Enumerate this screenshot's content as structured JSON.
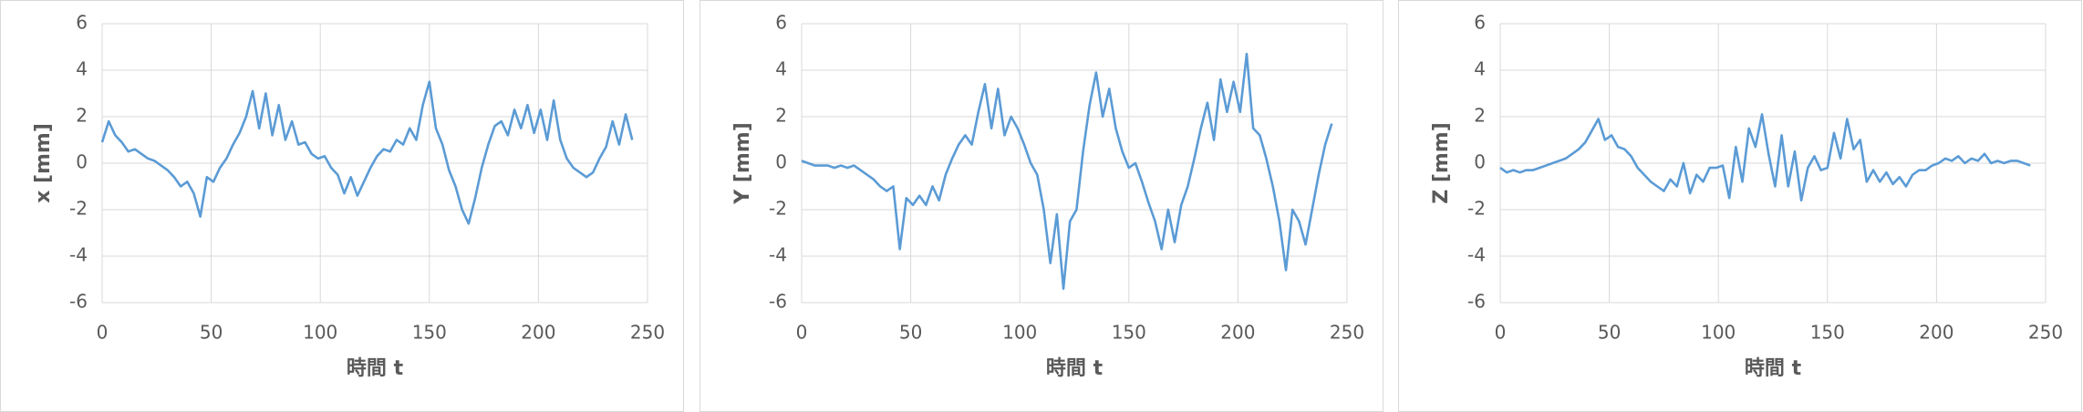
{
  "chart_data": [
    {
      "type": "line",
      "ylabel": "x [mm]",
      "xlabel": "時間 t",
      "xlim": [
        0,
        250
      ],
      "xticks": [
        0,
        50,
        100,
        150,
        200,
        250
      ],
      "ylim": [
        -6,
        6
      ],
      "yticks": [
        -6,
        -4,
        -2,
        0,
        2,
        4,
        6
      ],
      "grid": true,
      "x": [
        0,
        3,
        6,
        9,
        12,
        15,
        18,
        21,
        24,
        27,
        30,
        33,
        36,
        39,
        42,
        45,
        48,
        51,
        54,
        57,
        60,
        63,
        66,
        69,
        72,
        75,
        78,
        81,
        84,
        87,
        90,
        93,
        96,
        99,
        102,
        105,
        108,
        111,
        114,
        117,
        120,
        123,
        126,
        129,
        132,
        135,
        138,
        141,
        144,
        147,
        150,
        153,
        156,
        159,
        162,
        165,
        168,
        171,
        174,
        177,
        180,
        183,
        186,
        189,
        192,
        195,
        198,
        201,
        204,
        207,
        210,
        213,
        216,
        219,
        222,
        225,
        228,
        231,
        234,
        237,
        240,
        243
      ],
      "series": [
        {
          "color": "#5b9bd5",
          "values": [
            0.9,
            1.8,
            1.2,
            0.9,
            0.5,
            0.6,
            0.4,
            0.2,
            0.1,
            -0.1,
            -0.3,
            -0.6,
            -1.0,
            -0.8,
            -1.3,
            -2.3,
            -0.6,
            -0.8,
            -0.2,
            0.2,
            0.8,
            1.3,
            2.0,
            3.1,
            1.5,
            3.0,
            1.2,
            2.5,
            1.0,
            1.8,
            0.8,
            0.9,
            0.4,
            0.2,
            0.3,
            -0.2,
            -0.5,
            -1.3,
            -0.6,
            -1.4,
            -0.8,
            -0.2,
            0.3,
            0.6,
            0.5,
            1.0,
            0.8,
            1.5,
            1.0,
            2.5,
            3.5,
            1.5,
            0.8,
            -0.3,
            -1.0,
            -2.0,
            -2.6,
            -1.5,
            -0.2,
            0.8,
            1.6,
            1.8,
            1.2,
            2.3,
            1.5,
            2.5,
            1.3,
            2.3,
            1.0,
            2.7,
            1.0,
            0.2,
            -0.2,
            -0.4,
            -0.6,
            -0.4,
            0.2,
            0.7,
            1.8,
            0.8,
            2.1,
            1.0
          ]
        }
      ]
    },
    {
      "type": "line",
      "ylabel": "Y [mm]",
      "xlabel": "時間 t",
      "xlim": [
        0,
        250
      ],
      "xticks": [
        0,
        50,
        100,
        150,
        200,
        250
      ],
      "ylim": [
        -6,
        6
      ],
      "yticks": [
        -6,
        -4,
        -2,
        0,
        2,
        4,
        6
      ],
      "grid": true,
      "x": [
        0,
        3,
        6,
        9,
        12,
        15,
        18,
        21,
        24,
        27,
        30,
        33,
        36,
        39,
        42,
        45,
        48,
        51,
        54,
        57,
        60,
        63,
        66,
        69,
        72,
        75,
        78,
        81,
        84,
        87,
        90,
        93,
        96,
        99,
        102,
        105,
        108,
        111,
        114,
        117,
        120,
        123,
        126,
        129,
        132,
        135,
        138,
        141,
        144,
        147,
        150,
        153,
        156,
        159,
        162,
        165,
        168,
        171,
        174,
        177,
        180,
        183,
        186,
        189,
        192,
        195,
        198,
        201,
        204,
        207,
        210,
        213,
        216,
        219,
        222,
        225,
        228,
        231,
        234,
        237,
        240,
        243
      ],
      "series": [
        {
          "color": "#5b9bd5",
          "values": [
            0.1,
            0,
            -0.1,
            -0.1,
            -0.1,
            -0.2,
            -0.1,
            -0.2,
            -0.1,
            -0.3,
            -0.5,
            -0.7,
            -1.0,
            -1.2,
            -1.0,
            -3.7,
            -1.5,
            -1.8,
            -1.4,
            -1.8,
            -1.0,
            -1.6,
            -0.5,
            0.2,
            0.8,
            1.2,
            0.8,
            2.2,
            3.4,
            1.5,
            3.2,
            1.2,
            2.0,
            1.5,
            0.8,
            0,
            -0.5,
            -2.0,
            -4.3,
            -2.2,
            -5.4,
            -2.5,
            -2.0,
            0.5,
            2.5,
            3.9,
            2.0,
            3.2,
            1.5,
            0.5,
            -0.2,
            0,
            -0.8,
            -1.7,
            -2.5,
            -3.7,
            -2.0,
            -3.4,
            -1.8,
            -1.0,
            0.2,
            1.5,
            2.6,
            1.0,
            3.6,
            2.2,
            3.5,
            2.2,
            4.7,
            1.5,
            1.2,
            0.2,
            -1.0,
            -2.5,
            -4.6,
            -2.0,
            -2.5,
            -3.5,
            -2.0,
            -0.5,
            0.8,
            1.7
          ]
        }
      ]
    },
    {
      "type": "line",
      "ylabel": "Z [mm]",
      "xlabel": "時間 t",
      "xlim": [
        0,
        250
      ],
      "xticks": [
        0,
        50,
        100,
        150,
        200,
        250
      ],
      "ylim": [
        -6,
        6
      ],
      "yticks": [
        -6,
        -4,
        -2,
        0,
        2,
        4,
        6
      ],
      "grid": true,
      "x": [
        0,
        3,
        6,
        9,
        12,
        15,
        18,
        21,
        24,
        27,
        30,
        33,
        36,
        39,
        42,
        45,
        48,
        51,
        54,
        57,
        60,
        63,
        66,
        69,
        72,
        75,
        78,
        81,
        84,
        87,
        90,
        93,
        96,
        99,
        102,
        105,
        108,
        111,
        114,
        117,
        120,
        123,
        126,
        129,
        132,
        135,
        138,
        141,
        144,
        147,
        150,
        153,
        156,
        159,
        162,
        165,
        168,
        171,
        174,
        177,
        180,
        183,
        186,
        189,
        192,
        195,
        198,
        201,
        204,
        207,
        210,
        213,
        216,
        219,
        222,
        225,
        228,
        231,
        234,
        237,
        240,
        243
      ],
      "series": [
        {
          "color": "#5b9bd5",
          "values": [
            -0.2,
            -0.4,
            -0.3,
            -0.4,
            -0.3,
            -0.3,
            -0.2,
            -0.1,
            0,
            0.1,
            0.2,
            0.4,
            0.6,
            0.9,
            1.4,
            1.9,
            1.0,
            1.2,
            0.7,
            0.6,
            0.3,
            -0.2,
            -0.5,
            -0.8,
            -1.0,
            -1.2,
            -0.7,
            -1.0,
            0,
            -1.3,
            -0.5,
            -0.8,
            -0.2,
            -0.2,
            -0.1,
            -1.5,
            0.7,
            -0.8,
            1.5,
            0.7,
            2.1,
            0.4,
            -1.0,
            1.2,
            -1.0,
            0.5,
            -1.6,
            -0.2,
            0.3,
            -0.3,
            -0.2,
            1.3,
            0.2,
            1.9,
            0.6,
            1.0,
            -0.8,
            -0.3,
            -0.8,
            -0.4,
            -0.9,
            -0.6,
            -1.0,
            -0.5,
            -0.3,
            -0.3,
            -0.1,
            0,
            0.2,
            0.1,
            0.3,
            0,
            0.2,
            0.1,
            0.4,
            0,
            0.1,
            0,
            0.1,
            0.1,
            0,
            -0.1
          ]
        }
      ]
    }
  ]
}
